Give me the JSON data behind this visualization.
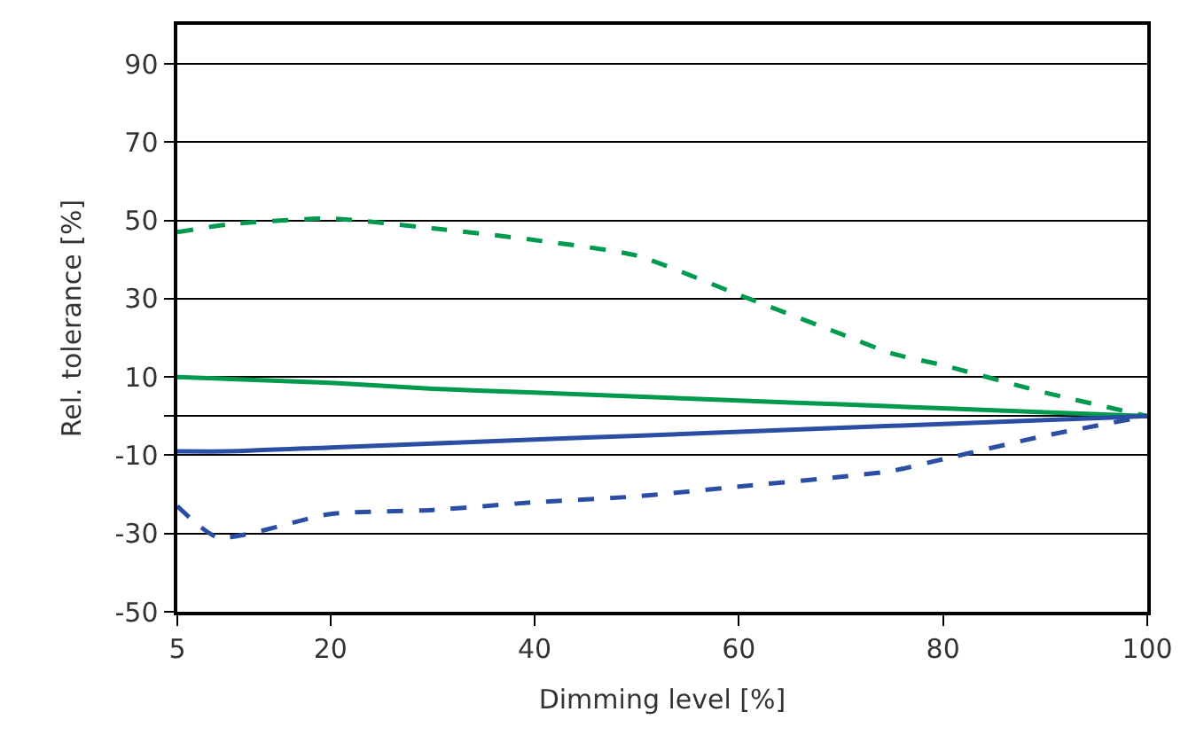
{
  "chart_data": {
    "type": "line",
    "xlabel": "Dimming level [%]",
    "ylabel": "Rel. tolerance [%]",
    "xlim": [
      5,
      100
    ],
    "xticks": [
      5,
      20,
      40,
      60,
      80,
      100
    ],
    "ylim": [
      -50,
      100
    ],
    "yticks": [
      -50,
      -30,
      -10,
      {
        "value": 0,
        "label": null
      },
      10,
      30,
      50,
      70,
      90
    ],
    "grid": "y",
    "marker": "none",
    "series": [
      {
        "color": "#009a4e",
        "line_style": "dashed",
        "x": [
          5,
          10,
          20,
          30,
          40,
          50,
          60,
          70,
          75,
          80,
          90,
          100
        ],
        "values": [
          47,
          49,
          50.5,
          48,
          45,
          41,
          31,
          21,
          16,
          13,
          6,
          0
        ]
      },
      {
        "color": "#009a4e",
        "line_style": "solid",
        "x": [
          5,
          20,
          30,
          40,
          50,
          60,
          70,
          80,
          90,
          100
        ],
        "values": [
          10,
          8.5,
          7,
          6,
          5,
          4,
          3,
          2,
          1,
          0
        ]
      },
      {
        "color": "#2a4ea3",
        "line_style": "solid",
        "x": [
          5,
          10,
          20,
          30,
          40,
          50,
          60,
          70,
          80,
          90,
          100
        ],
        "values": [
          -9,
          -9,
          -8,
          -7,
          -6,
          -5,
          -4,
          -3,
          -2,
          -1,
          0
        ]
      },
      {
        "color": "#2a4ea3",
        "line_style": "dashed",
        "x": [
          5,
          9,
          20,
          30,
          40,
          50,
          60,
          70,
          75,
          80,
          90,
          100
        ],
        "values": [
          -23,
          -31,
          -25,
          -24,
          -22,
          -20.5,
          -18,
          -15.5,
          -14,
          -11,
          -5,
          0
        ]
      }
    ]
  }
}
